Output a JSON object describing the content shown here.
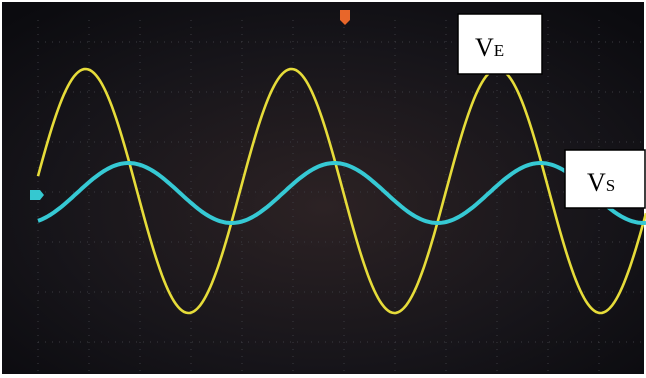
{
  "labels": [
    {
      "main": "V",
      "sub": "E"
    },
    {
      "main": "V",
      "sub": "S"
    }
  ]
}
